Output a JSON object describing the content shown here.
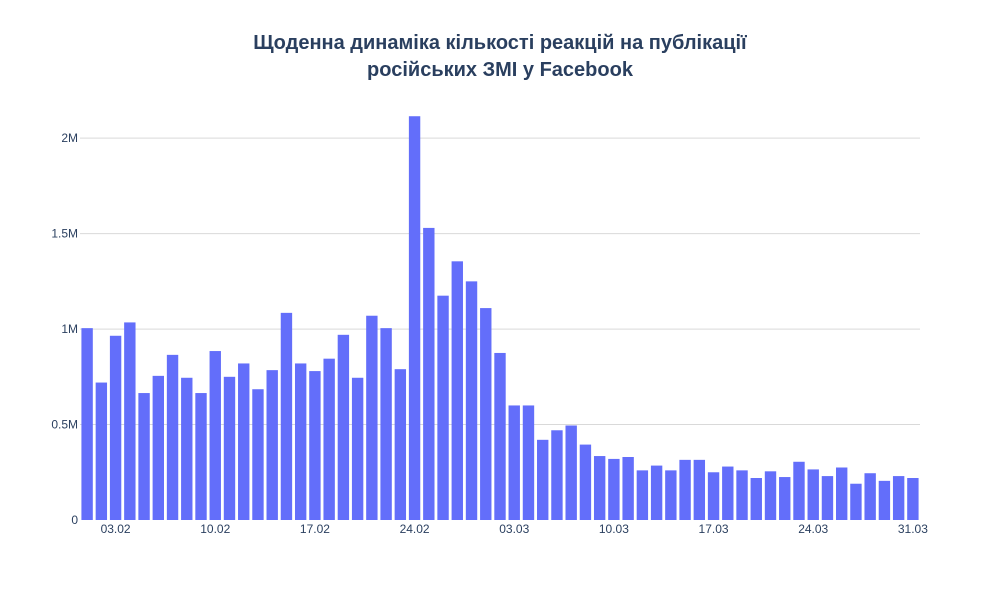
{
  "chart_data": {
    "type": "bar",
    "title_lines": [
      "Щоденна динаміка кількості реакцій на публікації",
      "російських ЗМІ у Facebook"
    ],
    "xlabel": "",
    "ylabel": "",
    "bar_color": "#636efa",
    "grid_color": "#d9d9d9",
    "text_color": "#2a3f5f",
    "grid": true,
    "ylim": [
      0,
      2200000
    ],
    "y_ticks": [
      0,
      500000,
      1000000,
      1500000,
      2000000
    ],
    "y_tick_labels": [
      "0",
      "0.5M",
      "1M",
      "1.5M",
      "2M"
    ],
    "x_tick_labels": [
      "03.02",
      "10.02",
      "17.02",
      "24.02",
      "03.03",
      "10.03",
      "17.03",
      "24.03",
      "31.03"
    ],
    "x_tick_index": [
      2,
      9,
      16,
      23,
      30,
      37,
      44,
      51,
      58
    ],
    "categories": [
      "01.02",
      "02.02",
      "03.02",
      "04.02",
      "05.02",
      "06.02",
      "07.02",
      "08.02",
      "09.02",
      "10.02",
      "11.02",
      "12.02",
      "13.02",
      "14.02",
      "15.02",
      "16.02",
      "17.02",
      "18.02",
      "19.02",
      "20.02",
      "21.02",
      "22.02",
      "23.02",
      "24.02",
      "25.02",
      "26.02",
      "27.02",
      "28.02",
      "01.03",
      "02.03",
      "03.03",
      "04.03",
      "05.03",
      "06.03",
      "07.03",
      "08.03",
      "09.03",
      "10.03",
      "11.03",
      "12.03",
      "13.03",
      "14.03",
      "15.03",
      "16.03",
      "17.03",
      "18.03",
      "19.03",
      "20.03",
      "21.03",
      "22.03",
      "23.03",
      "24.03",
      "25.03",
      "26.03",
      "27.03",
      "28.03",
      "29.03",
      "30.03",
      "31.03"
    ],
    "values": [
      1005000,
      720000,
      965000,
      1035000,
      665000,
      755000,
      865000,
      745000,
      665000,
      885000,
      750000,
      820000,
      685000,
      785000,
      1085000,
      820000,
      780000,
      845000,
      970000,
      745000,
      1070000,
      1005000,
      790000,
      2115000,
      1530000,
      1175000,
      1355000,
      1250000,
      1110000,
      875000,
      600000,
      600000,
      420000,
      470000,
      495000,
      395000,
      335000,
      320000,
      330000,
      260000,
      285000,
      260000,
      315000,
      315000,
      250000,
      280000,
      260000,
      220000,
      255000,
      225000,
      305000,
      265000,
      230000,
      275000,
      190000,
      245000,
      205000,
      230000,
      220000
    ]
  }
}
